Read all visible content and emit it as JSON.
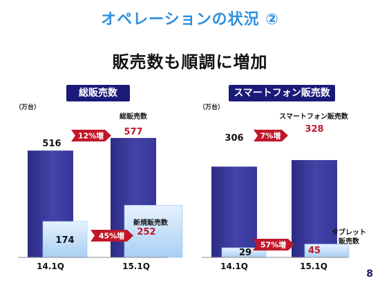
{
  "title": "オペレーションの状況 ②",
  "subtitle": "販売数も順調に増加",
  "page_number": "8",
  "colors": {
    "title": "#2c8fe0",
    "panel_header": "#1a1a7a",
    "bar_total": "#3a3a96",
    "bar_sub": "#b9d9f7",
    "value_highlight": "#c0182a",
    "growth_arrow": "#c0182a"
  },
  "chart_data": [
    {
      "type": "bar",
      "title": "総販売数",
      "unit": "（万台）",
      "categories": [
        "14.1Q",
        "15.1Q"
      ],
      "series": [
        {
          "name": "総販売数",
          "values": [
            516,
            577
          ]
        },
        {
          "name": "新規販売数",
          "values": [
            174,
            252
          ]
        }
      ],
      "growth": [
        {
          "label": "12%増",
          "series": "総販売数"
        },
        {
          "label": "45%増",
          "series": "新規販売数"
        }
      ],
      "ylim": [
        0,
        600
      ],
      "grid": false
    },
    {
      "type": "bar",
      "title": "スマートフォン販売数",
      "unit": "（万台）",
      "categories": [
        "14.1Q",
        "15.1Q"
      ],
      "series": [
        {
          "name": "スマートフォン販売数",
          "values": [
            306,
            328
          ]
        },
        {
          "name": "タブレット\n販売数",
          "values": [
            29,
            45
          ]
        }
      ],
      "growth": [
        {
          "label": "7%増",
          "series": "スマートフォン販売数"
        },
        {
          "label": "57%増",
          "series": "タブレット\n販売数"
        }
      ],
      "ylim": [
        0,
        350
      ],
      "grid": false
    }
  ]
}
